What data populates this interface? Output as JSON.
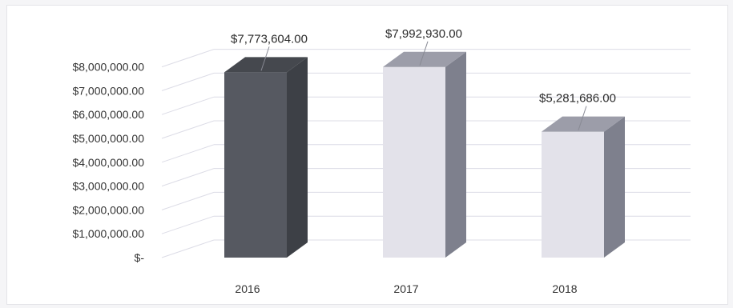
{
  "chart_data": {
    "type": "bar",
    "style": "3d-column",
    "categories": [
      "2016",
      "2017",
      "2018"
    ],
    "values": [
      7773604.0,
      7992930.0,
      5281686.0
    ],
    "data_labels": [
      "$7,773,604.00",
      "$7,992,930.00",
      "$5,281,686.00"
    ],
    "y_ticks": [
      {
        "value": 0,
        "label": "$-"
      },
      {
        "value": 1000000,
        "label": "$1,000,000.00"
      },
      {
        "value": 2000000,
        "label": "$2,000,000.00"
      },
      {
        "value": 3000000,
        "label": "$3,000,000.00"
      },
      {
        "value": 4000000,
        "label": "$4,000,000.00"
      },
      {
        "value": 5000000,
        "label": "$5,000,000.00"
      },
      {
        "value": 6000000,
        "label": "$6,000,000.00"
      },
      {
        "value": 7000000,
        "label": "$7,000,000.00"
      },
      {
        "value": 8000000,
        "label": "$8,000,000.00"
      }
    ],
    "ylim": [
      0,
      8000000
    ],
    "title": "",
    "xlabel": "",
    "ylabel": "",
    "grid": true,
    "legend": "none",
    "bar_colors": [
      {
        "front": "#565961",
        "side": "#3d4046",
        "top": "#45484e"
      },
      {
        "front": "#e3e2ea",
        "side": "#7e808d",
        "top": "#9c9da9"
      },
      {
        "front": "#e3e2ea",
        "side": "#7e808d",
        "top": "#9c9da9"
      }
    ],
    "gridline_color": "#dcdce6"
  }
}
